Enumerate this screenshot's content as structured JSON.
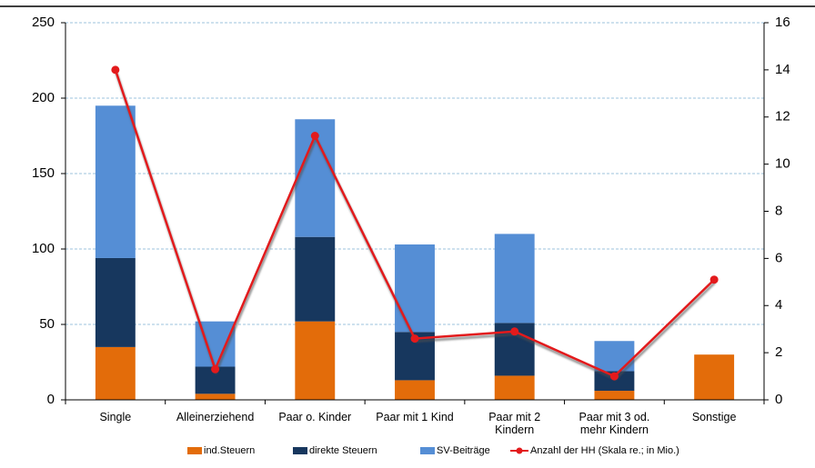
{
  "chart_data": {
    "type": "bar",
    "categories": [
      "Single",
      "Alleinerziehend",
      "Paar o. Kinder",
      "Paar mit 1 Kind",
      "Paar mit 2 Kindern",
      "Paar mit 3 od. mehr Kindern",
      "Sonstige"
    ],
    "series": [
      {
        "name": "ind.Steuern",
        "color": "#e36c0a",
        "values": [
          35,
          4,
          52,
          13,
          16,
          6,
          30
        ]
      },
      {
        "name": "direkte Steuern",
        "color": "#17375e",
        "values": [
          59,
          18,
          56,
          32,
          35,
          13,
          0
        ]
      },
      {
        "name": "SV-Beiträge",
        "color": "#558ed5",
        "values": [
          101,
          30,
          78,
          58,
          59,
          20,
          0
        ]
      },
      {
        "name": "Anzahl der HH (Skala re.; in Mio.)",
        "color": "#e31a1c",
        "type": "line",
        "axis": "y2",
        "values": [
          14.0,
          1.3,
          11.2,
          2.6,
          2.9,
          1.0,
          5.1
        ]
      }
    ],
    "stacked": true,
    "ylim": [
      0,
      250
    ],
    "yticks": [
      0,
      50,
      100,
      150,
      200,
      250
    ],
    "y2lim": [
      0,
      16
    ],
    "y2ticks": [
      0,
      2,
      4,
      6,
      8,
      10,
      12,
      14,
      16
    ],
    "grid": true,
    "legend": "bottom"
  }
}
